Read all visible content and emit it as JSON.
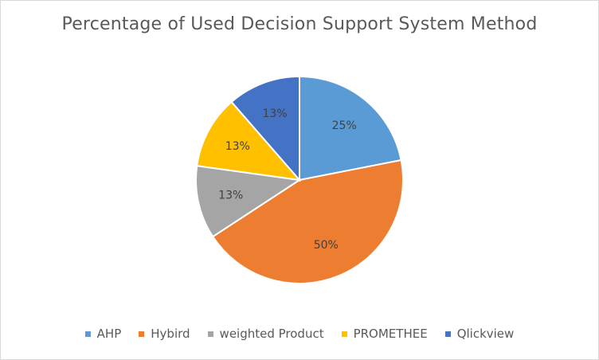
{
  "chart_data": {
    "type": "pie",
    "title": "Percentage of Used Decision Support System Method",
    "legend_placement": "bottom",
    "categories": [
      "AHP",
      "Hybird",
      "weighted Product",
      "PROMETHEE",
      "Qlickview"
    ],
    "values": [
      25,
      50,
      13,
      13,
      13
    ],
    "labels": [
      "25%",
      "50%",
      "13%",
      "13%",
      "13%"
    ],
    "colors": [
      "#5b9bd5",
      "#ed7d31",
      "#a5a5a5",
      "#ffc000",
      "#4472c4"
    ]
  }
}
